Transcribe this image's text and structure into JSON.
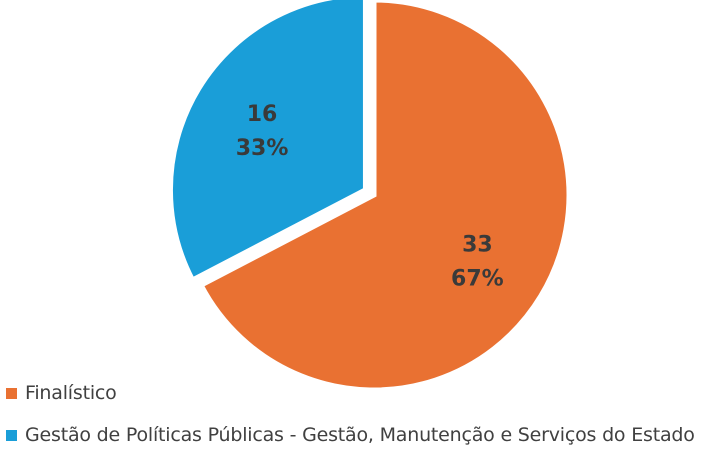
{
  "chart_data": {
    "type": "pie",
    "title": "",
    "legend_position": "bottom-left",
    "slices": [
      {
        "name": "Finalístico",
        "value": 33,
        "percent_label": "67%",
        "color": "#E97132"
      },
      {
        "name": "Gestão de Políticas Públicas - Gestão, Manutenção e Serviços do Estado",
        "value": 16,
        "percent_label": "33%",
        "color": "#1A9ED8"
      }
    ]
  }
}
